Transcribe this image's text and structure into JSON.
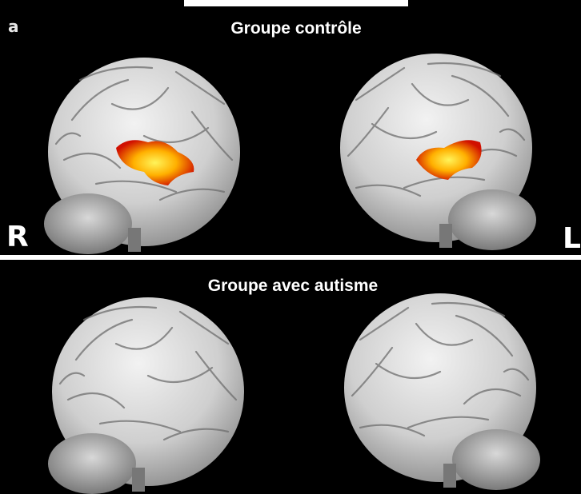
{
  "panel_label": "a",
  "panels": [
    {
      "title": "Groupe contrôle",
      "left_label": "R",
      "right_label": "L"
    },
    {
      "title": "Groupe avec autisme"
    }
  ]
}
